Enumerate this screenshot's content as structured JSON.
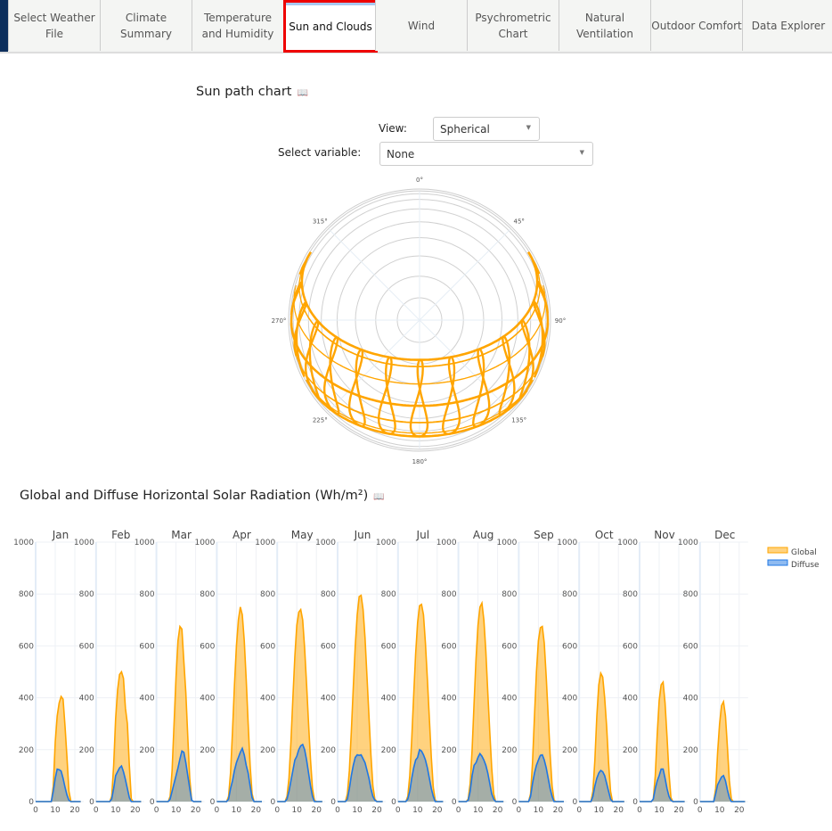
{
  "tabs": [
    {
      "label": "Select Weather File"
    },
    {
      "label": "Climate Summary"
    },
    {
      "label": "Temperature and Humidity"
    },
    {
      "label": "Sun and Clouds",
      "active": true
    },
    {
      "label": "Wind"
    },
    {
      "label": "Psychrometric Chart"
    },
    {
      "label": "Natural Ventilation"
    },
    {
      "label": "Outdoor Comfort"
    },
    {
      "label": "Data Explorer"
    }
  ],
  "sunpath": {
    "title": "Sun path chart",
    "info_icon": "book-icon",
    "view_label": "View:",
    "view_value": "Spherical",
    "variable_label": "Select variable:",
    "variable_value": "None",
    "azimuth_labels": [
      "0°",
      "45°",
      "90°",
      "135°",
      "180°",
      "225°",
      "270°",
      "315°"
    ],
    "path_color": "#ffa500"
  },
  "radiation": {
    "title": "Global and Diffuse Horizontal Solar Radiation (Wh/m²)",
    "info_icon": "book-icon",
    "chart_data": {
      "type": "area",
      "months": [
        "Jan",
        "Feb",
        "Mar",
        "Apr",
        "May",
        "Jun",
        "Jul",
        "Aug",
        "Sep",
        "Oct",
        "Nov",
        "Dec"
      ],
      "x": [
        0,
        1,
        2,
        3,
        4,
        5,
        6,
        7,
        8,
        9,
        10,
        11,
        12,
        13,
        14,
        15,
        16,
        17,
        18,
        19,
        20,
        21,
        22,
        23
      ],
      "xticks": [
        0,
        10,
        20
      ],
      "yticks": [
        0,
        200,
        400,
        600,
        800,
        1000
      ],
      "ylim": [
        0,
        1000
      ],
      "legend": "top-right",
      "series": [
        {
          "name": "Global",
          "color": "#ffa500",
          "values": [
            [
              0,
              0,
              0,
              0,
              0,
              0,
              0,
              0,
              0,
              60,
              230,
              330,
              380,
              405,
              395,
              290,
              170,
              40,
              0,
              0,
              0,
              0,
              0,
              0
            ],
            [
              0,
              0,
              0,
              0,
              0,
              0,
              0,
              0,
              20,
              140,
              320,
              430,
              490,
              500,
              475,
              360,
              300,
              140,
              10,
              0,
              0,
              0,
              0,
              0
            ],
            [
              0,
              0,
              0,
              0,
              0,
              0,
              0,
              20,
              120,
              300,
              480,
              620,
              675,
              665,
              540,
              420,
              250,
              90,
              5,
              0,
              0,
              0,
              0,
              0
            ],
            [
              0,
              0,
              0,
              0,
              0,
              0,
              20,
              110,
              270,
              450,
              600,
              700,
              750,
              720,
              620,
              470,
              300,
              140,
              30,
              0,
              0,
              0,
              0,
              0
            ],
            [
              0,
              0,
              0,
              0,
              0,
              20,
              90,
              230,
              400,
              560,
              680,
              730,
              740,
              700,
              590,
              450,
              300,
              160,
              50,
              5,
              0,
              0,
              0,
              0
            ],
            [
              0,
              0,
              0,
              0,
              0,
              30,
              120,
              270,
              440,
              600,
              720,
              790,
              795,
              740,
              630,
              480,
              330,
              180,
              60,
              10,
              0,
              0,
              0,
              0
            ],
            [
              0,
              0,
              0,
              0,
              0,
              20,
              100,
              240,
              410,
              570,
              690,
              755,
              760,
              720,
              610,
              470,
              320,
              170,
              55,
              5,
              0,
              0,
              0,
              0
            ],
            [
              0,
              0,
              0,
              0,
              0,
              10,
              70,
              200,
              380,
              550,
              680,
              750,
              765,
              700,
              580,
              420,
              270,
              130,
              30,
              0,
              0,
              0,
              0,
              0
            ],
            [
              0,
              0,
              0,
              0,
              0,
              0,
              30,
              150,
              330,
              500,
              620,
              670,
              675,
              610,
              480,
              330,
              180,
              60,
              5,
              0,
              0,
              0,
              0,
              0
            ],
            [
              0,
              0,
              0,
              0,
              0,
              0,
              0,
              40,
              160,
              330,
              450,
              495,
              480,
              400,
              290,
              150,
              40,
              0,
              0,
              0,
              0,
              0,
              0,
              0
            ],
            [
              0,
              0,
              0,
              0,
              0,
              0,
              0,
              10,
              100,
              260,
              390,
              450,
              460,
              380,
              250,
              110,
              15,
              0,
              0,
              0,
              0,
              0,
              0,
              0
            ],
            [
              0,
              0,
              0,
              0,
              0,
              0,
              0,
              0,
              50,
              190,
              300,
              370,
              385,
              330,
              210,
              80,
              10,
              0,
              0,
              0,
              0,
              0,
              0,
              0
            ]
          ]
        },
        {
          "name": "Diffuse",
          "color": "#1f77e4",
          "values": [
            [
              0,
              0,
              0,
              0,
              0,
              0,
              0,
              0,
              0,
              40,
              90,
              125,
              123,
              118,
              90,
              55,
              25,
              5,
              0,
              0,
              0,
              0,
              0,
              0
            ],
            [
              0,
              0,
              0,
              0,
              0,
              0,
              0,
              0,
              10,
              50,
              100,
              115,
              130,
              137,
              115,
              85,
              50,
              15,
              0,
              0,
              0,
              0,
              0,
              0
            ],
            [
              0,
              0,
              0,
              0,
              0,
              0,
              0,
              10,
              40,
              70,
              100,
              130,
              165,
              195,
              190,
              150,
              100,
              50,
              5,
              0,
              0,
              0,
              0,
              0
            ],
            [
              0,
              0,
              0,
              0,
              0,
              0,
              10,
              50,
              80,
              120,
              150,
              170,
              190,
              205,
              180,
              140,
              110,
              60,
              15,
              0,
              0,
              0,
              0,
              0
            ],
            [
              0,
              0,
              0,
              0,
              0,
              10,
              40,
              80,
              120,
              160,
              175,
              200,
              215,
              220,
              200,
              160,
              110,
              60,
              20,
              0,
              0,
              0,
              0,
              0
            ],
            [
              0,
              0,
              0,
              0,
              0,
              10,
              50,
              100,
              140,
              170,
              180,
              178,
              180,
              165,
              150,
              120,
              90,
              50,
              20,
              5,
              0,
              0,
              0,
              0
            ],
            [
              0,
              0,
              0,
              0,
              0,
              10,
              40,
              90,
              130,
              160,
              170,
              200,
              195,
              180,
              160,
              130,
              90,
              50,
              20,
              0,
              0,
              0,
              0,
              0
            ],
            [
              0,
              0,
              0,
              0,
              0,
              5,
              40,
              100,
              140,
              150,
              170,
              185,
              175,
              160,
              140,
              110,
              70,
              30,
              10,
              0,
              0,
              0,
              0,
              0
            ],
            [
              0,
              0,
              0,
              0,
              0,
              0,
              20,
              70,
              110,
              140,
              160,
              178,
              180,
              160,
              130,
              90,
              50,
              20,
              0,
              0,
              0,
              0,
              0,
              0
            ],
            [
              0,
              0,
              0,
              0,
              0,
              0,
              0,
              20,
              60,
              90,
              110,
              120,
              115,
              100,
              70,
              40,
              10,
              0,
              0,
              0,
              0,
              0,
              0,
              0
            ],
            [
              0,
              0,
              0,
              0,
              0,
              0,
              0,
              10,
              50,
              80,
              100,
              125,
              125,
              90,
              50,
              20,
              5,
              0,
              0,
              0,
              0,
              0,
              0,
              0
            ],
            [
              0,
              0,
              0,
              0,
              0,
              0,
              0,
              0,
              30,
              65,
              80,
              95,
              100,
              80,
              45,
              15,
              0,
              0,
              0,
              0,
              0,
              0,
              0,
              0
            ]
          ]
        }
      ]
    }
  }
}
